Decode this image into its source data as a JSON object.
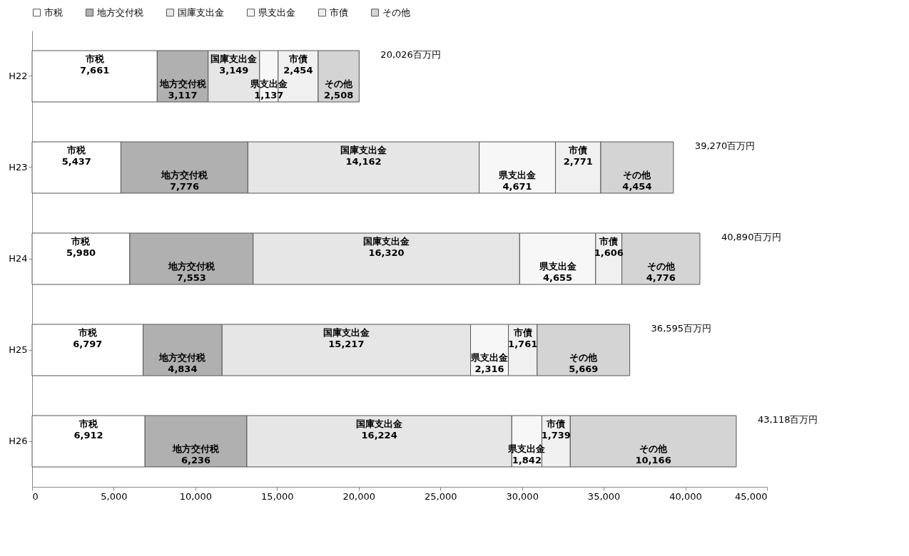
{
  "chart_data": {
    "type": "bar",
    "orientation": "horizontal",
    "stacked": true,
    "data_labels": false,
    "legend": "top left",
    "grid": false,
    "categories": [
      "H22",
      "H23",
      "H24",
      "H25",
      "H26"
    ],
    "xlim": [
      0,
      45000
    ],
    "xticks": [
      0,
      {
        "value": 5000,
        "label": "5,000"
      },
      {
        "value": 10000,
        "label": "10,000"
      },
      {
        "value": 15000,
        "label": "15,000"
      },
      {
        "value": 20000,
        "label": "20,000"
      },
      {
        "value": 25000,
        "label": "25,000"
      },
      {
        "value": 30000,
        "label": "30,000"
      },
      {
        "value": 35000,
        "label": "35,000"
      },
      {
        "value": 40000,
        "label": "40,000"
      },
      {
        "value": 45000,
        "label": "45,000"
      }
    ],
    "series": [
      {
        "name": "市税",
        "color": "#ffffff",
        "values": [
          7661,
          5437,
          5980,
          6797,
          6912
        ],
        "value_labels": [
          "7,661",
          "5,437",
          "5,980",
          "6,797",
          "6,912"
        ]
      },
      {
        "name": "地方交付税",
        "color": "#b0b0b0",
        "values": [
          3117,
          7776,
          7553,
          4834,
          6236
        ],
        "value_labels": [
          "3,117",
          "7,776",
          "7,553",
          "4,834",
          "6,236"
        ]
      },
      {
        "name": "国庫支出金",
        "color": "#e6e6e6",
        "values": [
          3149,
          14162,
          16320,
          15217,
          16224
        ],
        "value_labels": [
          "3,149",
          "14,162",
          "16,320",
          "15,217",
          "16,224"
        ]
      },
      {
        "name": "県支出金",
        "color": "#f7f7f7",
        "values": [
          1137,
          4671,
          4655,
          2316,
          1842
        ],
        "value_labels": [
          "1,137",
          "4,671",
          "4,655",
          "2,316",
          "1,842"
        ]
      },
      {
        "name": "市債",
        "color": "#f0f0f0",
        "values": [
          2454,
          2771,
          1606,
          1761,
          1739
        ],
        "value_labels": [
          "2,454",
          "2,771",
          "1,606",
          "1,761",
          "1,739"
        ]
      },
      {
        "name": "その他",
        "color": "#d4d4d4",
        "values": [
          2508,
          4454,
          4776,
          5669,
          10166
        ],
        "value_labels": [
          "2,508",
          "4,454",
          "4,776",
          "5,669",
          "10,166"
        ]
      }
    ],
    "totals": [
      "20,026百万円",
      "39,270百万円",
      "40,890百万円",
      "36,595百万円",
      "43,118百万円"
    ]
  }
}
